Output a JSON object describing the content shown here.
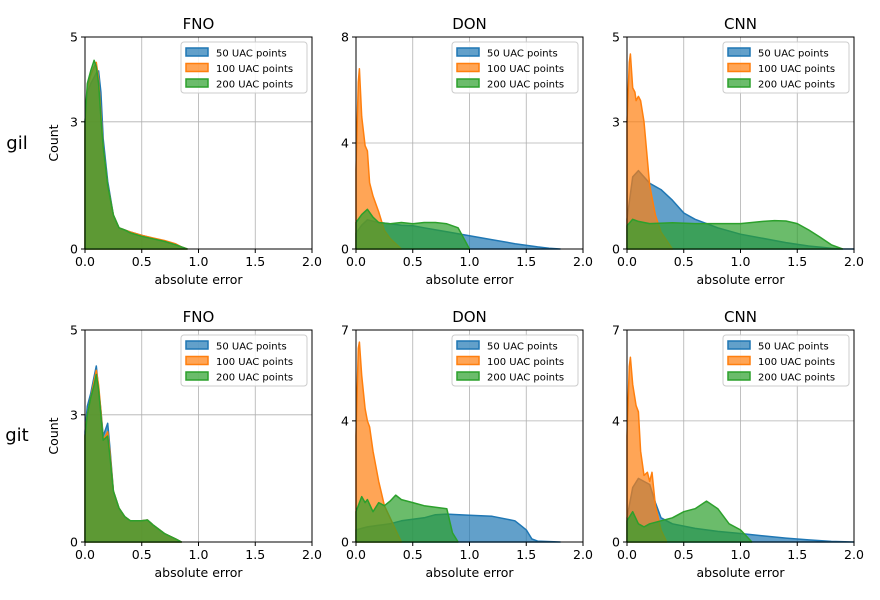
{
  "figure": {
    "row_labels": [
      "gil",
      "git"
    ],
    "xlabel": "absolute error",
    "ylabel": "Count",
    "colors": {
      "50 UAC points": "#1f77b4",
      "100 UAC points": "#ff7f0e",
      "200 UAC points": "#2ca02c"
    },
    "xticks": [
      "0.0",
      "0.5",
      "1.0",
      "1.5",
      "2.0"
    ]
  },
  "chart_data": [
    {
      "type": "area",
      "row": "gil",
      "title": "FNO",
      "xlabel": "absolute error",
      "ylabel": "Count",
      "xlim": [
        0,
        2
      ],
      "ylim": [
        0,
        5
      ],
      "yticks": [
        0,
        3,
        5
      ],
      "grid": true,
      "legend": "top-right",
      "series": [
        {
          "name": "50 UAC points",
          "x": [
            0,
            0.02,
            0.05,
            0.08,
            0.1,
            0.12,
            0.14,
            0.16,
            0.2,
            0.25,
            0.3,
            0.35,
            0.4,
            0.5,
            0.6,
            0.7,
            0.8,
            0.85,
            0.9
          ],
          "y": [
            3.0,
            3.7,
            3.9,
            4.05,
            4.15,
            4.2,
            3.7,
            2.6,
            1.6,
            0.8,
            0.5,
            0.45,
            0.4,
            0.32,
            0.25,
            0.18,
            0.1,
            0.05,
            0
          ]
        },
        {
          "name": "100 UAC points",
          "x": [
            0,
            0.02,
            0.05,
            0.08,
            0.1,
            0.12,
            0.14,
            0.16,
            0.2,
            0.25,
            0.3,
            0.35,
            0.4,
            0.5,
            0.6,
            0.7,
            0.8,
            0.85,
            0.9
          ],
          "y": [
            2.9,
            3.8,
            4.1,
            4.3,
            4.4,
            4.0,
            3.2,
            2.4,
            1.5,
            0.8,
            0.5,
            0.45,
            0.4,
            0.32,
            0.26,
            0.2,
            0.12,
            0.05,
            0
          ]
        },
        {
          "name": "200 UAC points",
          "x": [
            0,
            0.02,
            0.05,
            0.08,
            0.1,
            0.12,
            0.14,
            0.16,
            0.2,
            0.25,
            0.3,
            0.35,
            0.4,
            0.5,
            0.6,
            0.7,
            0.8,
            0.85,
            0.9
          ],
          "y": [
            3.0,
            3.9,
            4.2,
            4.45,
            4.3,
            3.9,
            3.1,
            2.4,
            1.5,
            0.8,
            0.5,
            0.45,
            0.38,
            0.3,
            0.24,
            0.18,
            0.1,
            0.05,
            0
          ]
        }
      ]
    },
    {
      "type": "area",
      "row": "gil",
      "title": "DON",
      "xlabel": "absolute error",
      "xlim": [
        0,
        2
      ],
      "ylim": [
        0,
        8
      ],
      "yticks": [
        0,
        4,
        8
      ],
      "grid": true,
      "legend": "top-right",
      "series": [
        {
          "name": "50 UAC points",
          "x": [
            0,
            0.05,
            0.1,
            0.2,
            0.3,
            0.4,
            0.5,
            0.6,
            0.8,
            1.0,
            1.2,
            1.4,
            1.6,
            1.7,
            1.8
          ],
          "y": [
            0.6,
            0.9,
            1.1,
            1.0,
            0.95,
            0.9,
            0.88,
            0.8,
            0.65,
            0.5,
            0.35,
            0.2,
            0.08,
            0.03,
            0
          ]
        },
        {
          "name": "100 UAC points",
          "x": [
            0,
            0.02,
            0.03,
            0.05,
            0.08,
            0.1,
            0.12,
            0.15,
            0.2,
            0.25,
            0.3,
            0.35,
            0.4
          ],
          "y": [
            3.0,
            6.3,
            6.8,
            5.0,
            3.9,
            3.7,
            2.5,
            2.0,
            1.4,
            0.7,
            0.4,
            0.2,
            0
          ]
        },
        {
          "name": "200 UAC points",
          "x": [
            0,
            0.05,
            0.1,
            0.15,
            0.2,
            0.3,
            0.4,
            0.5,
            0.6,
            0.7,
            0.8,
            0.9,
            0.95,
            1.0
          ],
          "y": [
            1.0,
            1.3,
            1.5,
            1.2,
            1.0,
            0.95,
            1.0,
            0.95,
            1.0,
            1.0,
            0.95,
            0.8,
            0.4,
            0
          ]
        }
      ]
    },
    {
      "type": "area",
      "row": "gil",
      "title": "CNN",
      "xlabel": "absolute error",
      "xlim": [
        0,
        2
      ],
      "ylim": [
        0,
        5
      ],
      "yticks": [
        0,
        3,
        5
      ],
      "grid": true,
      "legend": "top-right",
      "series": [
        {
          "name": "50 UAC points",
          "x": [
            0,
            0.05,
            0.1,
            0.2,
            0.3,
            0.4,
            0.5,
            0.6,
            0.7,
            0.8,
            1.0,
            1.2,
            1.4,
            1.6,
            1.8,
            1.9,
            2.0
          ],
          "y": [
            0.7,
            1.7,
            1.85,
            1.55,
            1.4,
            1.15,
            0.85,
            0.7,
            0.6,
            0.5,
            0.35,
            0.25,
            0.15,
            0.07,
            0.02,
            0,
            0
          ]
        },
        {
          "name": "100 UAC points",
          "x": [
            0,
            0.02,
            0.03,
            0.05,
            0.07,
            0.08,
            0.1,
            0.12,
            0.15,
            0.2,
            0.25,
            0.3,
            0.35,
            0.4
          ],
          "y": [
            3.0,
            4.4,
            4.6,
            3.8,
            3.7,
            3.5,
            3.6,
            3.5,
            3.0,
            1.5,
            0.8,
            0.4,
            0.2,
            0
          ]
        },
        {
          "name": "200 UAC points",
          "x": [
            0,
            0.05,
            0.1,
            0.2,
            0.4,
            0.6,
            0.8,
            1.0,
            1.2,
            1.3,
            1.4,
            1.5,
            1.6,
            1.7,
            1.8,
            1.9
          ],
          "y": [
            0.55,
            0.7,
            0.65,
            0.6,
            0.62,
            0.6,
            0.6,
            0.6,
            0.65,
            0.67,
            0.66,
            0.6,
            0.45,
            0.28,
            0.1,
            0
          ]
        }
      ]
    },
    {
      "type": "area",
      "row": "git",
      "title": "FNO",
      "xlabel": "absolute error",
      "ylabel": "Count",
      "xlim": [
        0,
        2
      ],
      "ylim": [
        0,
        5
      ],
      "yticks": [
        0,
        3,
        5
      ],
      "grid": true,
      "legend": "top-right",
      "series": [
        {
          "name": "50 UAC points",
          "x": [
            0,
            0.02,
            0.05,
            0.08,
            0.1,
            0.12,
            0.14,
            0.16,
            0.2,
            0.22,
            0.25,
            0.3,
            0.35,
            0.4,
            0.5,
            0.55,
            0.6,
            0.7,
            0.8,
            0.85
          ],
          "y": [
            2.6,
            3.2,
            3.5,
            3.9,
            4.15,
            3.6,
            3.1,
            2.5,
            2.8,
            2.2,
            1.2,
            0.8,
            0.6,
            0.5,
            0.5,
            0.52,
            0.4,
            0.2,
            0.07,
            0
          ]
        },
        {
          "name": "100 UAC points",
          "x": [
            0,
            0.02,
            0.05,
            0.08,
            0.1,
            0.12,
            0.14,
            0.16,
            0.2,
            0.22,
            0.25,
            0.3,
            0.35,
            0.4,
            0.5,
            0.55,
            0.6,
            0.7,
            0.8,
            0.85
          ],
          "y": [
            2.5,
            3.0,
            3.4,
            3.8,
            4.05,
            3.7,
            3.1,
            2.4,
            2.6,
            2.1,
            1.2,
            0.8,
            0.6,
            0.5,
            0.5,
            0.52,
            0.4,
            0.2,
            0.07,
            0
          ]
        },
        {
          "name": "200 UAC points",
          "x": [
            0,
            0.02,
            0.05,
            0.08,
            0.1,
            0.12,
            0.14,
            0.16,
            0.2,
            0.22,
            0.25,
            0.3,
            0.35,
            0.4,
            0.5,
            0.55,
            0.6,
            0.7,
            0.8,
            0.85
          ],
          "y": [
            2.5,
            3.0,
            3.4,
            3.7,
            3.95,
            3.6,
            3.0,
            2.4,
            2.5,
            2.0,
            1.2,
            0.8,
            0.6,
            0.5,
            0.5,
            0.52,
            0.4,
            0.2,
            0.07,
            0
          ]
        }
      ]
    },
    {
      "type": "area",
      "row": "git",
      "title": "DON",
      "xlabel": "absolute error",
      "xlim": [
        0,
        2
      ],
      "ylim": [
        0,
        7
      ],
      "yticks": [
        0,
        4,
        7
      ],
      "grid": true,
      "legend": "top-right",
      "series": [
        {
          "name": "50 UAC points",
          "x": [
            0,
            0.1,
            0.2,
            0.3,
            0.4,
            0.5,
            0.6,
            0.7,
            0.8,
            1.0,
            1.2,
            1.4,
            1.45,
            1.5,
            1.55,
            1.6,
            1.8
          ],
          "y": [
            0.4,
            0.5,
            0.55,
            0.6,
            0.7,
            0.75,
            0.8,
            0.9,
            0.92,
            0.88,
            0.85,
            0.7,
            0.55,
            0.4,
            0.1,
            0.03,
            0
          ]
        },
        {
          "name": "100 UAC points",
          "x": [
            0,
            0.02,
            0.03,
            0.05,
            0.08,
            0.1,
            0.12,
            0.15,
            0.2,
            0.25,
            0.3,
            0.35,
            0.4
          ],
          "y": [
            3.5,
            6.4,
            6.6,
            5.5,
            4.4,
            4.0,
            3.8,
            3.0,
            2.0,
            1.2,
            0.8,
            0.4,
            0
          ]
        },
        {
          "name": "200 UAC points",
          "x": [
            0,
            0.05,
            0.08,
            0.1,
            0.15,
            0.2,
            0.25,
            0.3,
            0.35,
            0.4,
            0.5,
            0.6,
            0.7,
            0.8,
            0.85,
            0.9
          ],
          "y": [
            1.0,
            1.5,
            1.3,
            1.4,
            1.0,
            1.3,
            1.2,
            1.35,
            1.55,
            1.4,
            1.3,
            1.2,
            1.15,
            1.1,
            0.3,
            0
          ]
        }
      ]
    },
    {
      "type": "area",
      "row": "git",
      "title": "CNN",
      "xlabel": "absolute error",
      "xlim": [
        0,
        2
      ],
      "ylim": [
        0,
        7
      ],
      "yticks": [
        0,
        4,
        7
      ],
      "grid": true,
      "legend": "top-right",
      "series": [
        {
          "name": "50 UAC points",
          "x": [
            0,
            0.05,
            0.1,
            0.2,
            0.25,
            0.3,
            0.4,
            0.6,
            0.8,
            1.0,
            1.2,
            1.4,
            1.6,
            1.8,
            2.0
          ],
          "y": [
            0.8,
            1.8,
            2.1,
            1.9,
            1.3,
            0.8,
            0.6,
            0.45,
            0.35,
            0.28,
            0.2,
            0.13,
            0.07,
            0.02,
            0
          ]
        },
        {
          "name": "100 UAC points",
          "x": [
            0,
            0.02,
            0.03,
            0.05,
            0.08,
            0.1,
            0.12,
            0.15,
            0.18,
            0.2,
            0.22,
            0.25,
            0.3,
            0.35
          ],
          "y": [
            3.5,
            5.8,
            6.1,
            5.2,
            4.5,
            4.3,
            3.0,
            2.2,
            2.3,
            2.0,
            2.3,
            1.2,
            0.4,
            0
          ]
        },
        {
          "name": "200 UAC points",
          "x": [
            0,
            0.05,
            0.1,
            0.15,
            0.2,
            0.3,
            0.4,
            0.5,
            0.6,
            0.7,
            0.8,
            0.9,
            1.0,
            1.05,
            1.1
          ],
          "y": [
            0.7,
            1.0,
            0.6,
            0.5,
            0.6,
            0.7,
            0.8,
            1.0,
            1.1,
            1.35,
            1.1,
            0.6,
            0.4,
            0.2,
            0
          ]
        }
      ]
    }
  ]
}
